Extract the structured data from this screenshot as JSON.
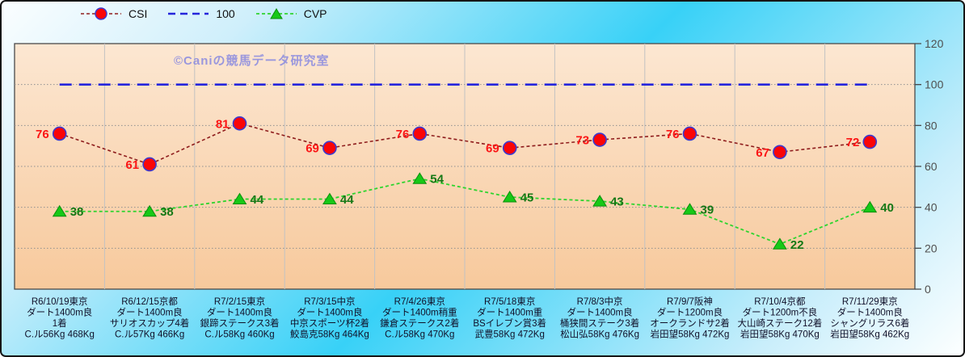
{
  "watermark": "©Caniの競馬データ研究室",
  "colors": {
    "background_mid": "#38d1f7",
    "background_corner": "#fbfeff",
    "plot_top": "#fce7d2",
    "plot_bottom": "#f7c99c",
    "plot_border": "#4a4a4a",
    "grid_horizontal": "#909090",
    "grid_vertical": "#c2c2c2",
    "axis_label": "#4f4f4f",
    "category_label": "#101028",
    "watermark": "#8a8ae0"
  },
  "chart_data": {
    "type": "line",
    "title": "",
    "xlabel": "",
    "ylabel": "",
    "ylim": [
      0,
      120
    ],
    "yticks": [
      0,
      20,
      40,
      60,
      80,
      100,
      120
    ],
    "grid": true,
    "legend_position": "top-left",
    "categories": [
      [
        "R6/10/19東京",
        "ダート1400m良",
        "1着",
        "C.ル56Kg 468Kg"
      ],
      [
        "R6/12/15京都",
        "ダート1400m良",
        "サリオスカップ4着",
        "C.ル57Kg 466Kg"
      ],
      [
        "R7/2/15東京",
        "ダート1400m良",
        "銀蹄ステークス3着",
        "C.ル58Kg 460Kg"
      ],
      [
        "R7/3/15中京",
        "ダート1400m良",
        "中京スポーツ杯2着",
        "鮫島克58Kg 464Kg"
      ],
      [
        "R7/4/26東京",
        "ダート1400m稍重",
        "鎌倉ステークス2着",
        "C.ル58Kg 470Kg"
      ],
      [
        "R7/5/18東京",
        "ダート1400m重",
        "BSイレブン賞3着",
        "武豊58Kg 472Kg"
      ],
      [
        "R7/8/3中京",
        "ダート1400m良",
        "桶狭間ステーク3着",
        "松山弘58Kg 476Kg"
      ],
      [
        "R7/9/7阪神",
        "ダート1200m良",
        "オークランドサ2着",
        "岩田望58Kg 472Kg"
      ],
      [
        "R7/10/4京都",
        "ダート1200m不良",
        "大山崎ステーク12着",
        "岩田望58Kg 470Kg"
      ],
      [
        "R7/11/29東京",
        "ダート1400m良",
        "シャングリラス6着",
        "岩田望58Kg 462Kg"
      ]
    ],
    "series": [
      {
        "name": "CSI",
        "values": [
          76,
          61,
          81,
          69,
          76,
          69,
          73,
          76,
          67,
          72
        ],
        "line_color": "#8f1d1d",
        "dash": "4 3",
        "line_width": 1.6,
        "marker": "circle",
        "marker_fill": "#fb0507",
        "marker_stroke": "#3a3ad0",
        "label_color": "#fb1515",
        "label_side": "left",
        "show_labels": true
      },
      {
        "name": "100",
        "values": [
          100,
          100,
          100,
          100,
          100,
          100,
          100,
          100,
          100,
          100
        ],
        "line_color": "#2525dc",
        "dash": "15 9",
        "line_width": 2.6,
        "marker": "none",
        "show_labels": false
      },
      {
        "name": "CVP",
        "values": [
          38,
          38,
          44,
          44,
          54,
          45,
          43,
          39,
          22,
          40
        ],
        "line_color": "#2fd42f",
        "dash": "4 3",
        "line_width": 1.8,
        "marker": "triangle",
        "marker_fill": "#17c917",
        "marker_stroke": "#0d8f0d",
        "label_color": "#157815",
        "label_side": "right",
        "show_labels": true
      }
    ]
  }
}
